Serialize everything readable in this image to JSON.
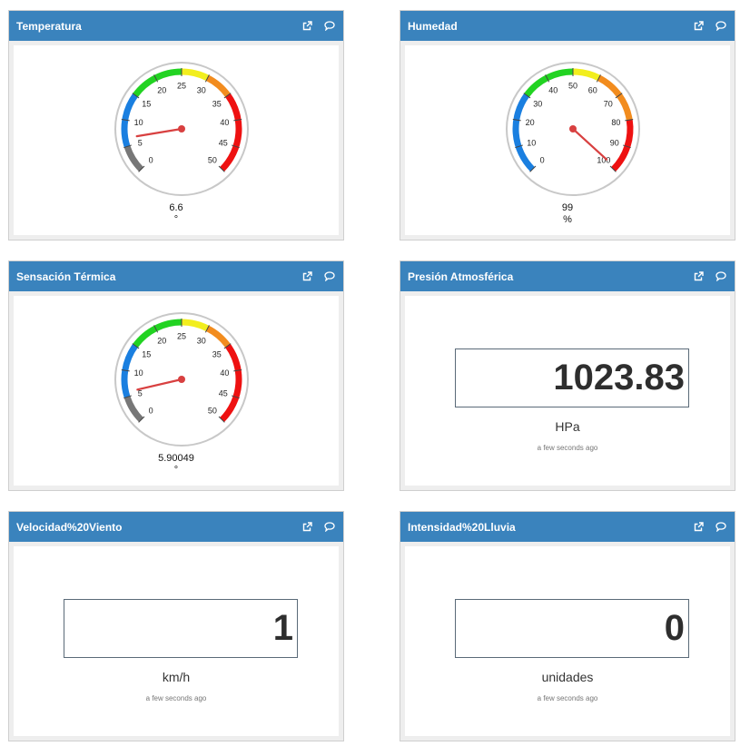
{
  "colors": {
    "header": "#3a83bd",
    "blue": "#1a7fe0",
    "green": "#22d322",
    "yellow": "#f2ee1e",
    "orange": "#f28c1e",
    "red": "#ee1111",
    "gray": "#777777",
    "needle": "#d84040"
  },
  "icons": {
    "popout": "external-link-icon",
    "comment": "comment-icon"
  },
  "panels": {
    "temperatura": {
      "title": "Temperatura",
      "gauge": {
        "min": 0,
        "max": 50,
        "ticks": [
          "0",
          "5",
          "10",
          "15",
          "20",
          "25",
          "30",
          "35",
          "40",
          "45",
          "50"
        ],
        "bands": [
          {
            "from": 0,
            "to": 5,
            "color": "#777777"
          },
          {
            "from": 5,
            "to": 15,
            "color": "#1a7fe0"
          },
          {
            "from": 15,
            "to": 25,
            "color": "#22d322"
          },
          {
            "from": 25,
            "to": 30,
            "color": "#f2ee1e"
          },
          {
            "from": 30,
            "to": 35,
            "color": "#f28c1e"
          },
          {
            "from": 35,
            "to": 50,
            "color": "#ee1111"
          }
        ],
        "value": 6.6
      },
      "value_label": "6.6",
      "unit": "°"
    },
    "humedad": {
      "title": "Humedad",
      "gauge": {
        "min": 0,
        "max": 100,
        "ticks": [
          "0",
          "10",
          "20",
          "30",
          "40",
          "50",
          "60",
          "70",
          "80",
          "90",
          "100"
        ],
        "bands": [
          {
            "from": 0,
            "to": 30,
            "color": "#1a7fe0"
          },
          {
            "from": 30,
            "to": 50,
            "color": "#22d322"
          },
          {
            "from": 50,
            "to": 60,
            "color": "#f2ee1e"
          },
          {
            "from": 60,
            "to": 80,
            "color": "#f28c1e"
          },
          {
            "from": 80,
            "to": 100,
            "color": "#ee1111"
          }
        ],
        "value": 99
      },
      "value_label": "99",
      "unit": "%"
    },
    "sensacion": {
      "title": "Sensación Térmica",
      "gauge": {
        "min": 0,
        "max": 50,
        "ticks": [
          "0",
          "5",
          "10",
          "15",
          "20",
          "25",
          "30",
          "35",
          "40",
          "45",
          "50"
        ],
        "bands": [
          {
            "from": 0,
            "to": 5,
            "color": "#777777"
          },
          {
            "from": 5,
            "to": 15,
            "color": "#1a7fe0"
          },
          {
            "from": 15,
            "to": 25,
            "color": "#22d322"
          },
          {
            "from": 25,
            "to": 30,
            "color": "#f2ee1e"
          },
          {
            "from": 30,
            "to": 35,
            "color": "#f28c1e"
          },
          {
            "from": 35,
            "to": 50,
            "color": "#ee1111"
          }
        ],
        "value": 5.90049
      },
      "value_label": "5.90049",
      "unit": "°"
    },
    "presion": {
      "title": "Presión Atmosférica",
      "value": "1023.83",
      "unit": "HPa",
      "updated": "a few seconds ago"
    },
    "viento": {
      "title": "Velocidad%20Viento",
      "value": "1",
      "unit": "km/h",
      "updated": "a few seconds ago"
    },
    "lluvia": {
      "title": "Intensidad%20Lluvia",
      "value": "0",
      "unit": "unidades",
      "updated": "a few seconds ago"
    }
  }
}
